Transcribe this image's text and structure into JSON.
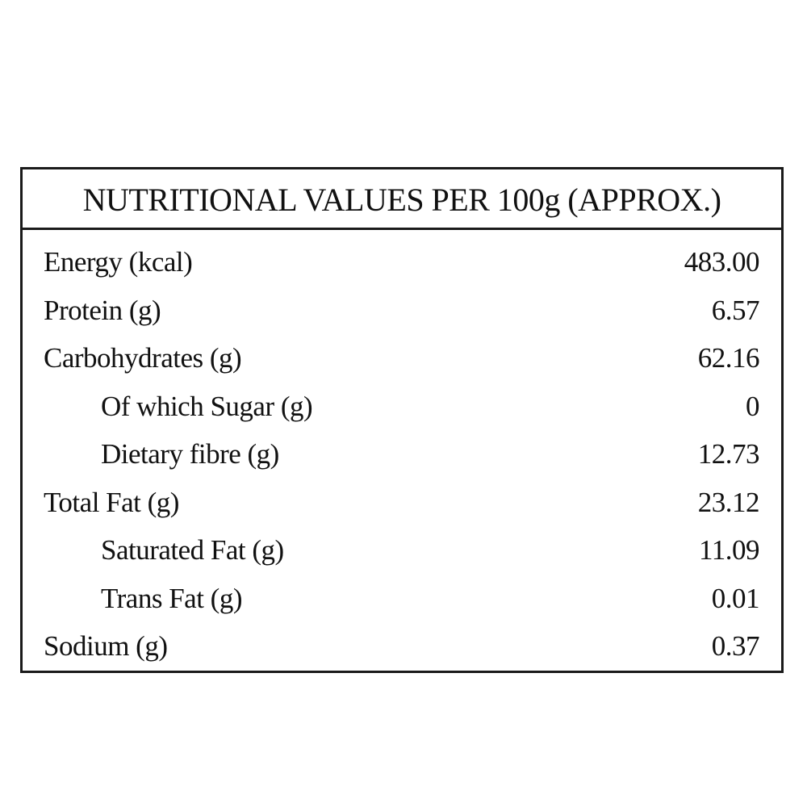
{
  "table": {
    "title": "NUTRITIONAL VALUES PER 100g (APPROX.)",
    "rows": [
      {
        "label": "Energy (kcal)",
        "value": "483.00",
        "indent": false
      },
      {
        "label": "Protein (g)",
        "value": "6.57",
        "indent": false
      },
      {
        "label": "Carbohydrates (g)",
        "value": "62.16",
        "indent": false
      },
      {
        "label": "Of which Sugar (g)",
        "value": "0",
        "indent": true
      },
      {
        "label": "Dietary fibre (g)",
        "value": "12.73",
        "indent": true
      },
      {
        "label": "Total Fat (g)",
        "value": "23.12",
        "indent": false
      },
      {
        "label": "Saturated Fat (g)",
        "value": "11.09",
        "indent": true
      },
      {
        "label": "Trans Fat (g)",
        "value": "0.01",
        "indent": true
      },
      {
        "label": "Sodium (g)",
        "value": "0.37",
        "indent": false
      }
    ]
  }
}
